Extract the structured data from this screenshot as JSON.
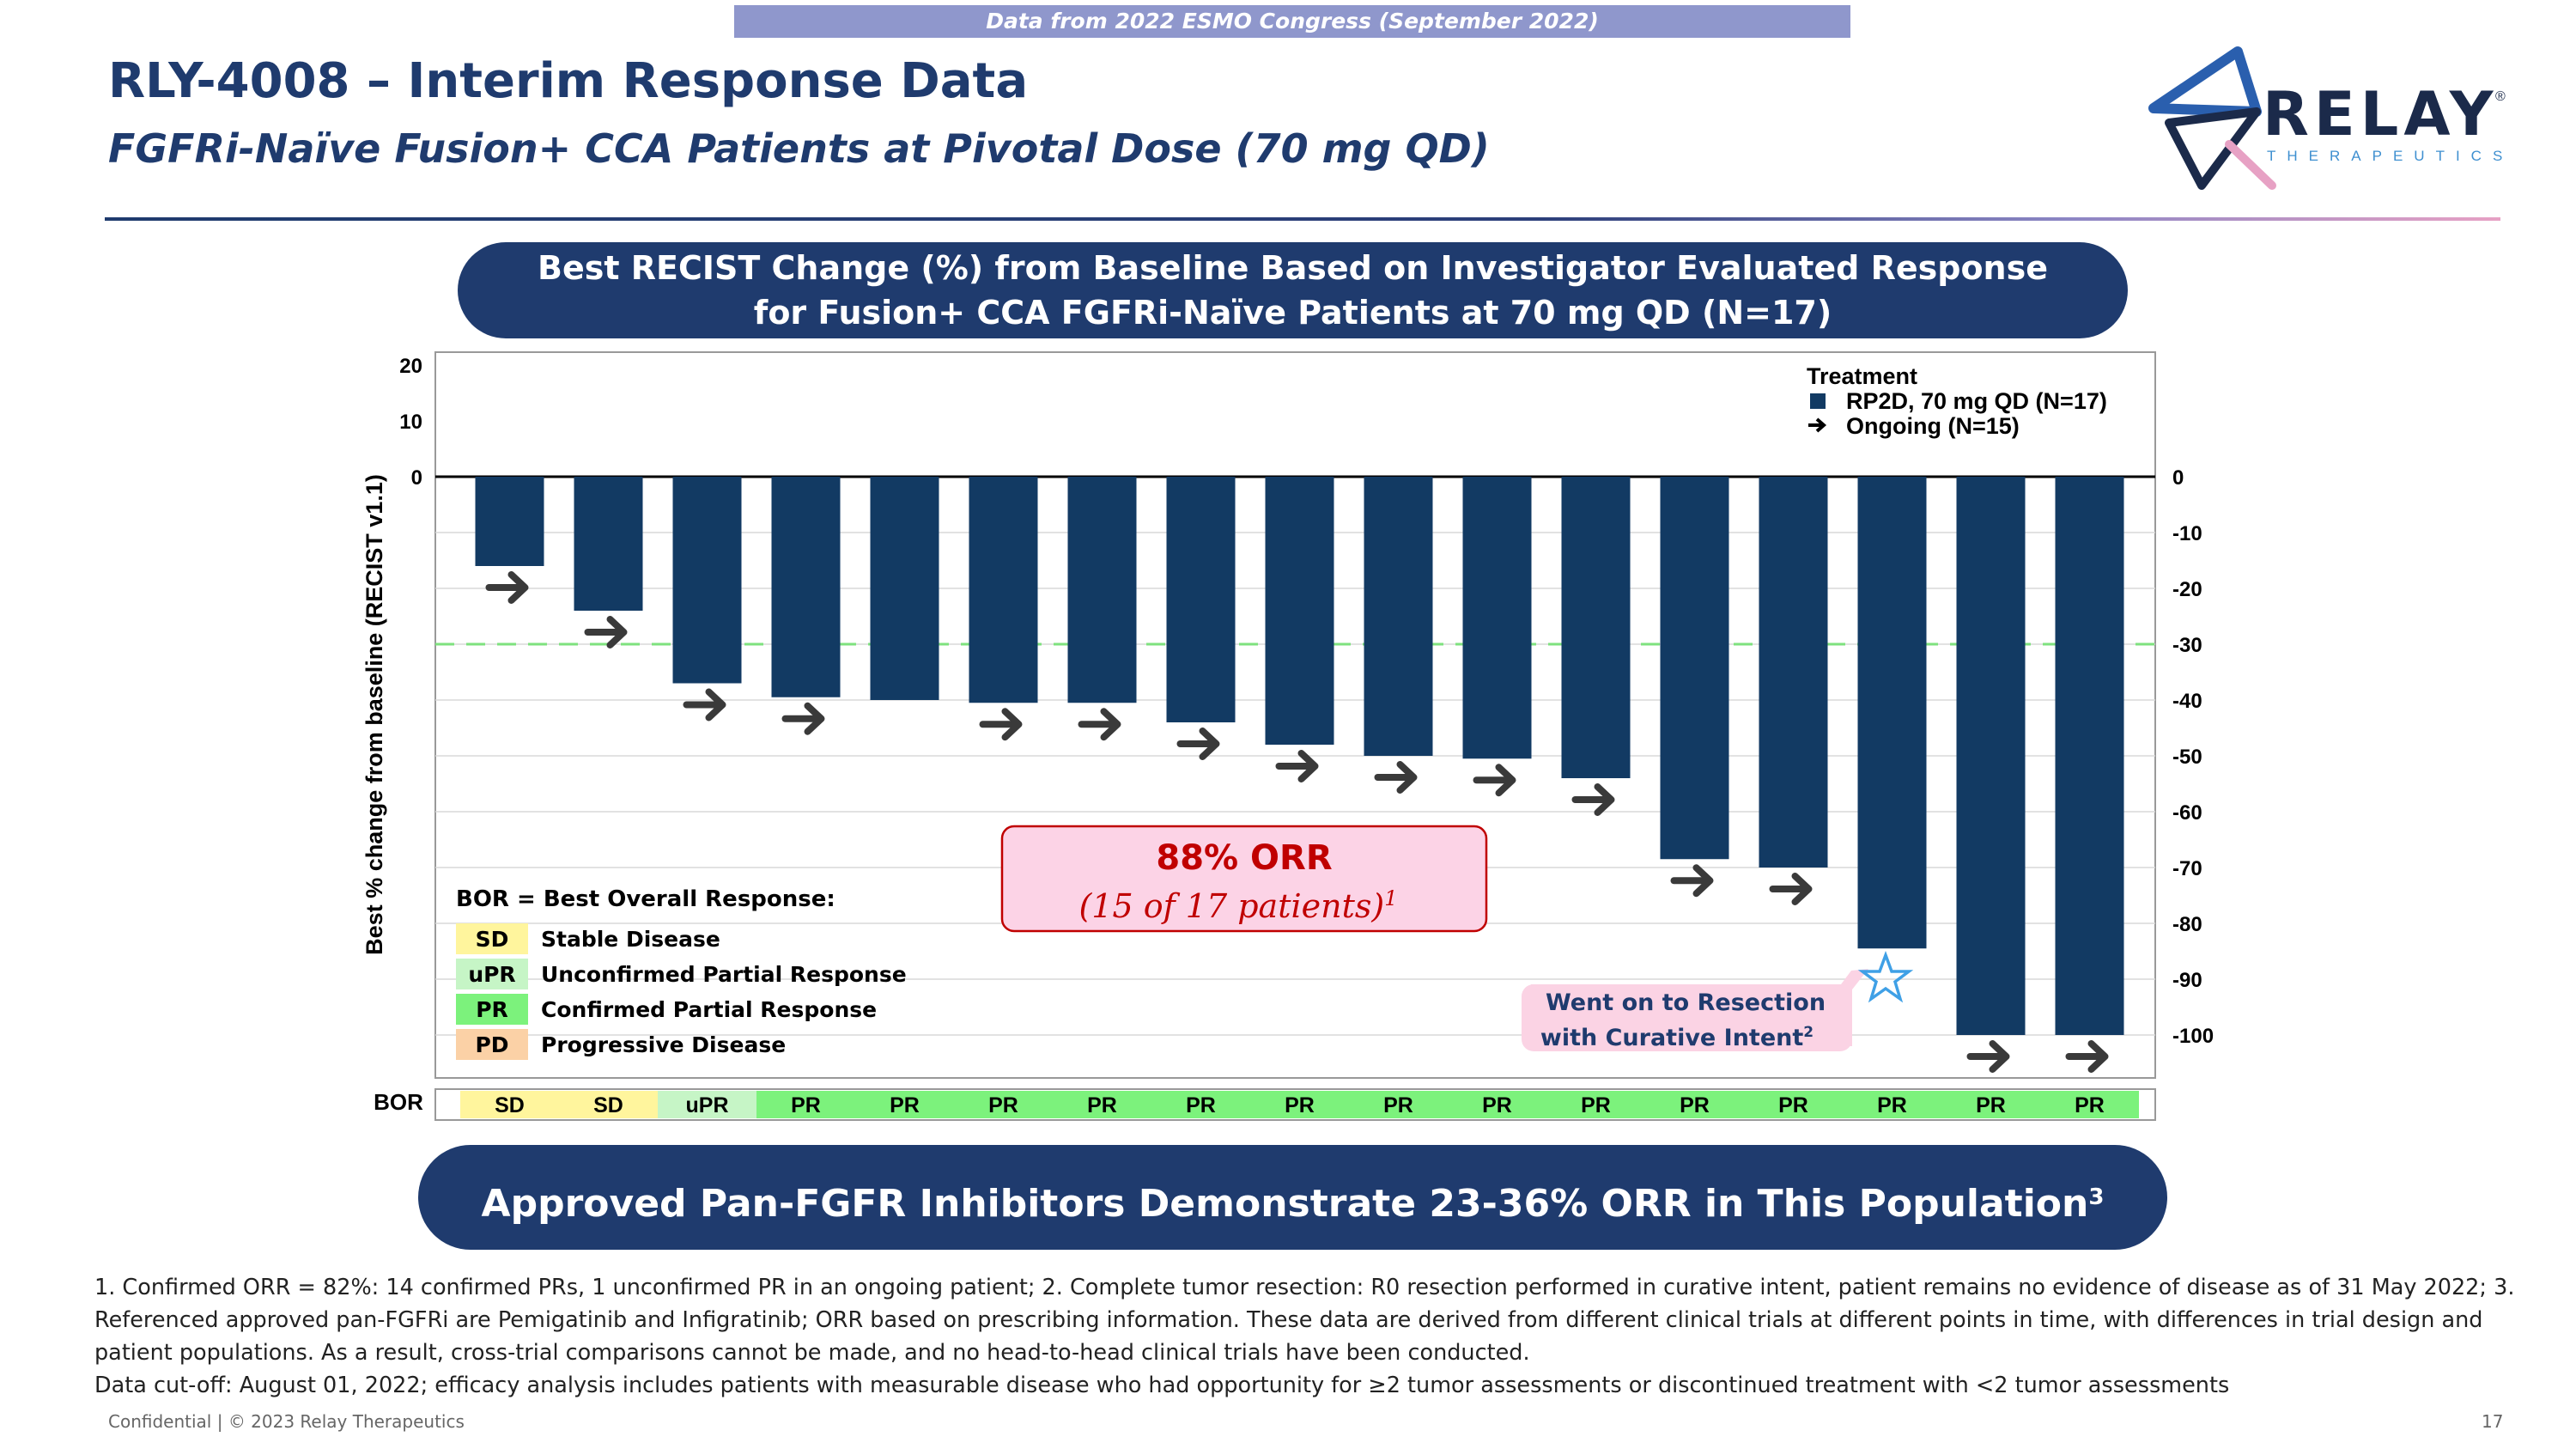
{
  "header": {
    "banner": "Data from 2022 ESMO Congress (September 2022)",
    "title": "RLY-4008 – Interim Response Data",
    "subtitle": "FGFRi-Naïve Fusion+ CCA Patients at Pivotal Dose (70 mg QD)"
  },
  "logo": {
    "word": "RELAY",
    "reg": "®",
    "sub": "THERAPEUTICS"
  },
  "chart_header": {
    "line1": "Best RECIST Change (%) from Baseline Based on Investigator Evaluated Response",
    "line2": "for Fusion+ CCA FGFRi-Naïve Patients at 70 mg QD (N=17)"
  },
  "chart_data": {
    "type": "bar",
    "ylabel": "Best % change from baseline (RECIST v1.1)",
    "left_ticks": [
      "20",
      "10",
      "0"
    ],
    "right_ticks": [
      "0",
      "-10",
      "-20",
      "-30",
      "-40",
      "-50",
      "-60",
      "-70",
      "-80",
      "-90",
      "-100"
    ],
    "ylim": [
      -108,
      20
    ],
    "threshold": -30,
    "values": [
      -16,
      -24,
      -37,
      -39.5,
      -40,
      -40.5,
      -40.5,
      -44,
      -48,
      -50,
      -50.5,
      -54,
      -68.5,
      -70,
      -84.5,
      -100,
      -100
    ],
    "ongoing": [
      true,
      true,
      true,
      true,
      false,
      true,
      true,
      true,
      true,
      true,
      true,
      true,
      true,
      true,
      false,
      true,
      true
    ],
    "bor": [
      "SD",
      "SD",
      "uPR",
      "PR",
      "PR",
      "PR",
      "PR",
      "PR",
      "PR",
      "PR",
      "PR",
      "PR",
      "PR",
      "PR",
      "PR",
      "PR",
      "PR"
    ],
    "bor_label": "BOR",
    "legend": {
      "title": "Treatment",
      "series": "RP2D, 70 mg QD (N=17)",
      "ongoing": "Ongoing (N=15)",
      "placement": "top-right"
    },
    "bor_legend": {
      "title": "BOR = Best Overall Response:",
      "items": [
        {
          "code": "SD",
          "label": "Stable Disease"
        },
        {
          "code": "uPR",
          "label": "Unconfirmed Partial Response"
        },
        {
          "code": "PR",
          "label": "Confirmed Partial Response"
        },
        {
          "code": "PD",
          "label": "Progressive Disease"
        }
      ]
    },
    "orr_box": {
      "line1": "88% ORR",
      "line2": "(15 of 17 patients)",
      "sup": "1"
    },
    "resection_callout": {
      "line1": "Went on to Resection",
      "line2": "with Curative Intent",
      "sup": "2",
      "bar_index": 14
    }
  },
  "colors": {
    "bar": "#123a63",
    "threshold": "#7ee27e",
    "sd": "#fff59d",
    "upr": "#c6f5c6",
    "pr": "#7cf27c",
    "pd": "#fbd1a6",
    "navy": "#1f3b6e",
    "orr_text": "#c00000",
    "orr_fill": "#fcd3e6",
    "callout_fill": "#fbd3e4",
    "star": "#3fa0e6"
  },
  "bottom_banner": {
    "text": "Approved Pan-FGFR Inhibitors Demonstrate 23-36% ORR in This Population",
    "sup": "3"
  },
  "footnote": {
    "para1": "1. Confirmed ORR = 82%: 14 confirmed PRs, 1 unconfirmed PR in an ongoing patient;  2. Complete tumor resection: R0 resection performed in curative intent, patient remains no evidence of disease as of 31 May 2022;  3. Referenced approved pan-FGFRi are Pemigatinib and Infigratinib; ORR based on prescribing information. These data are derived from different clinical trials at different points in time, with differences in trial design and patient populations. As a result, cross-trial comparisons cannot be made, and no head-to-head clinical trials have been conducted.",
    "para2": "Data cut-off: August 01, 2022; efficacy analysis includes patients with measurable disease who had opportunity for ≥2 tumor assessments or discontinued treatment with <2 tumor assessments"
  },
  "footer": {
    "confidential": "Confidential | © 2023 Relay Therapeutics",
    "page": "17"
  }
}
